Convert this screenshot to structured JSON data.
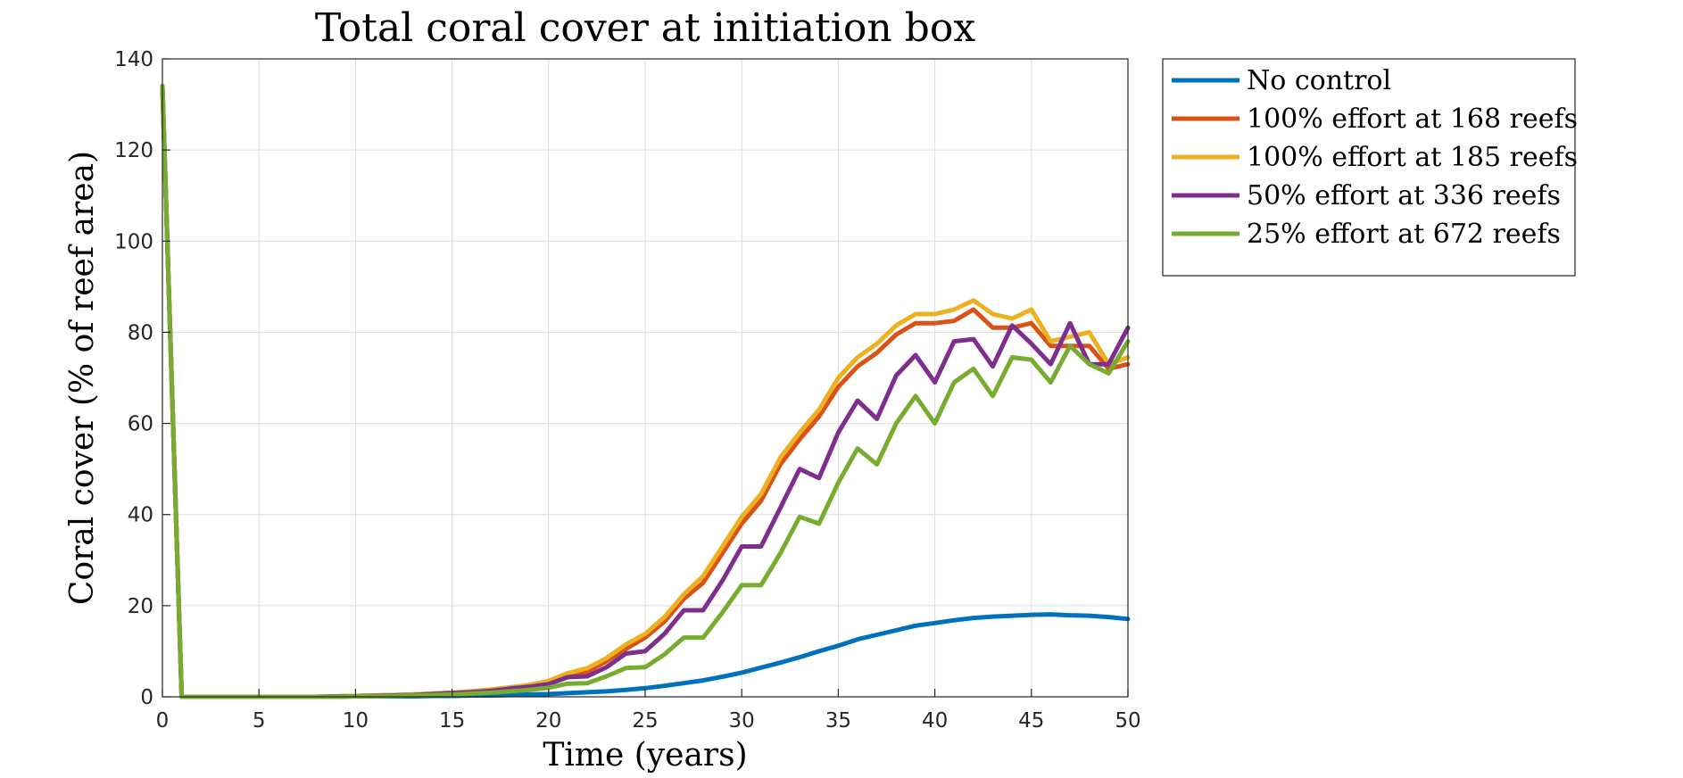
{
  "chart_data": {
    "type": "line",
    "title": "Total coral cover at initiation box",
    "xlabel": "Time (years)",
    "ylabel": "Coral cover (% of reef area)",
    "xlim": [
      0,
      50
    ],
    "ylim": [
      0,
      140
    ],
    "xticks": [
      0,
      5,
      10,
      15,
      20,
      25,
      30,
      35,
      40,
      45,
      50
    ],
    "yticks": [
      0,
      20,
      40,
      60,
      80,
      100,
      120,
      140
    ],
    "grid": true,
    "legend_position": "outside-top-right",
    "x": [
      0,
      1,
      2,
      3,
      4,
      5,
      6,
      7,
      8,
      9,
      10,
      11,
      12,
      13,
      14,
      15,
      16,
      17,
      18,
      19,
      20,
      21,
      22,
      23,
      24,
      25,
      26,
      27,
      28,
      29,
      30,
      31,
      32,
      33,
      34,
      35,
      36,
      37,
      38,
      39,
      40,
      41,
      42,
      43,
      44,
      45,
      46,
      47,
      48,
      49,
      50
    ],
    "series": [
      {
        "name": "No control",
        "color": "#0072BD",
        "values": [
          134,
          0,
          0,
          0,
          0,
          0,
          0,
          0,
          0,
          0,
          0.1,
          0.1,
          0.1,
          0.1,
          0.2,
          0.2,
          0.3,
          0.3,
          0.4,
          0.5,
          0.6,
          0.8,
          1.0,
          1.2,
          1.5,
          1.9,
          2.4,
          3.0,
          3.6,
          4.4,
          5.3,
          6.4,
          7.5,
          8.7,
          10.0,
          11.2,
          12.6,
          13.6,
          14.6,
          15.6,
          16.2,
          16.8,
          17.3,
          17.6,
          17.8,
          18.0,
          18.1,
          17.9,
          17.8,
          17.5,
          17.1
        ]
      },
      {
        "name": "100% effort at 168 reefs",
        "color": "#D95319",
        "values": [
          134,
          0,
          0,
          0,
          0,
          0,
          0,
          0,
          0,
          0.1,
          0.2,
          0.3,
          0.4,
          0.5,
          0.7,
          0.9,
          1.2,
          1.5,
          2.0,
          2.5,
          3.3,
          4.8,
          5.5,
          7.8,
          10.5,
          13.0,
          16.5,
          21.5,
          25.0,
          31.5,
          38.0,
          43.0,
          51.0,
          56.5,
          61.5,
          68.0,
          72.5,
          75.5,
          79.5,
          82.0,
          82.0,
          82.5,
          85.0,
          81.0,
          81.0,
          82.0,
          77.0,
          77.0,
          77.0,
          72.0,
          73.0
        ]
      },
      {
        "name": "100% effort at 185 reefs",
        "color": "#EDB120",
        "values": [
          134,
          0,
          0,
          0,
          0,
          0,
          0,
          0,
          0,
          0.1,
          0.2,
          0.3,
          0.4,
          0.5,
          0.7,
          0.9,
          1.2,
          1.6,
          2.1,
          2.6,
          3.5,
          5.2,
          6.3,
          8.5,
          11.5,
          13.8,
          17.5,
          22.5,
          26.5,
          33.0,
          39.5,
          44.5,
          52.5,
          58.0,
          63.0,
          70.0,
          74.5,
          77.5,
          81.5,
          84.0,
          84.0,
          85.0,
          87.0,
          84.0,
          83.0,
          85.0,
          78.0,
          79.0,
          80.0,
          73.0,
          74.5
        ]
      },
      {
        "name": "50% effort at 336 reefs",
        "color": "#7E2F8E",
        "values": [
          134,
          0,
          0,
          0,
          0,
          0,
          0,
          0,
          0,
          0.1,
          0.1,
          0.2,
          0.3,
          0.4,
          0.6,
          0.8,
          1.0,
          1.3,
          1.8,
          2.2,
          2.8,
          4.3,
          4.5,
          6.5,
          9.5,
          10.0,
          13.8,
          19.0,
          19.0,
          25.5,
          33.0,
          33.0,
          41.5,
          50.0,
          48.0,
          58.0,
          65.0,
          61.0,
          70.5,
          75.0,
          69.0,
          78.0,
          78.5,
          72.5,
          81.5,
          77.5,
          73.0,
          82.0,
          73.0,
          73.0,
          81.0
        ]
      },
      {
        "name": "25% effort at 672 reefs",
        "color": "#77AC30",
        "values": [
          134,
          0,
          0,
          0,
          0,
          0,
          0,
          0,
          0,
          0,
          0.1,
          0.1,
          0.2,
          0.3,
          0.4,
          0.5,
          0.7,
          0.9,
          1.2,
          1.5,
          2.0,
          2.9,
          3.0,
          4.5,
          6.3,
          6.5,
          9.3,
          13.0,
          13.0,
          18.5,
          24.5,
          24.5,
          31.5,
          39.5,
          38.0,
          47.0,
          54.5,
          51.0,
          60.0,
          66.0,
          60.0,
          69.0,
          72.0,
          66.0,
          74.5,
          74.0,
          69.0,
          77.0,
          73.0,
          71.0,
          78.0
        ]
      }
    ]
  }
}
